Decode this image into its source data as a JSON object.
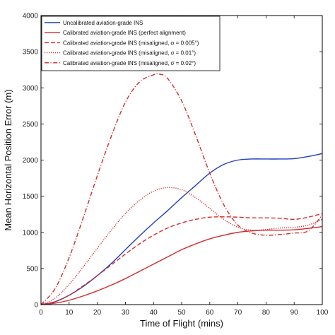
{
  "chart_data": {
    "type": "line",
    "xlabel": "Time of Flight (mins)",
    "ylabel": "Mean Horizontal Position Error (m)",
    "xlim": [
      0,
      100
    ],
    "ylim": [
      0,
      4000
    ],
    "xticks": [
      0,
      10,
      20,
      30,
      40,
      50,
      60,
      70,
      80,
      90,
      100
    ],
    "yticks": [
      0,
      500,
      1000,
      1500,
      2000,
      2500,
      3000,
      3500,
      4000
    ],
    "grid": false,
    "legend_position": "top-left",
    "series": [
      {
        "name": "Uncalibrated aviation-grade INS",
        "color": "#1f3fbf",
        "style": "solid",
        "x": [
          0,
          5,
          10,
          15,
          20,
          25,
          30,
          35,
          40,
          45,
          50,
          55,
          60,
          65,
          70,
          75,
          80,
          85,
          90,
          95,
          100
        ],
        "y": [
          0,
          40,
          130,
          250,
          400,
          570,
          760,
          950,
          1130,
          1300,
          1480,
          1650,
          1820,
          1940,
          2000,
          2015,
          2015,
          2015,
          2020,
          2050,
          2090
        ]
      },
      {
        "name": "Calibrated aviation-grade INS (perfect alignment)",
        "color": "#d42a2a",
        "style": "solid",
        "x": [
          0,
          5,
          10,
          15,
          20,
          25,
          30,
          35,
          40,
          45,
          50,
          55,
          60,
          65,
          70,
          75,
          80,
          85,
          90,
          95,
          100
        ],
        "y": [
          0,
          20,
          60,
          120,
          190,
          270,
          360,
          460,
          560,
          660,
          760,
          840,
          910,
          960,
          1000,
          1020,
          1030,
          1030,
          1035,
          1055,
          1080
        ]
      },
      {
        "name": "Calibrated aviation-grade INS (misaligned, σ = 0.005°)",
        "color": "#d42a2a",
        "style": "dashed",
        "x": [
          0,
          5,
          10,
          15,
          20,
          25,
          30,
          35,
          40,
          45,
          50,
          55,
          60,
          65,
          70,
          75,
          80,
          85,
          90,
          95,
          100
        ],
        "y": [
          0,
          40,
          130,
          260,
          400,
          550,
          700,
          840,
          960,
          1060,
          1130,
          1180,
          1210,
          1215,
          1210,
          1200,
          1200,
          1195,
          1180,
          1210,
          1260
        ]
      },
      {
        "name": "Calibrated aviation-grade INS (misaligned, σ = 0.01°)",
        "color": "#d42a2a",
        "style": "dotted",
        "x": [
          0,
          5,
          10,
          15,
          20,
          25,
          30,
          35,
          40,
          45,
          50,
          55,
          60,
          65,
          70,
          75,
          80,
          85,
          90,
          95,
          100
        ],
        "y": [
          0,
          90,
          280,
          520,
          780,
          1030,
          1260,
          1440,
          1570,
          1620,
          1590,
          1480,
          1330,
          1180,
          1070,
          1030,
          1040,
          1060,
          1070,
          1100,
          1180
        ]
      },
      {
        "name": "Calibrated aviation-grade INS (misaligned, σ = 0.02°)",
        "color": "#d42a2a",
        "style": "dashdot",
        "x": [
          0,
          5,
          10,
          15,
          20,
          25,
          30,
          35,
          40,
          42,
          45,
          50,
          55,
          60,
          65,
          70,
          75,
          80,
          85,
          90,
          95,
          100
        ],
        "y": [
          0,
          220,
          650,
          1200,
          1780,
          2330,
          2800,
          3080,
          3180,
          3190,
          3130,
          2820,
          2340,
          1820,
          1380,
          1100,
          990,
          960,
          970,
          990,
          1020,
          1240
        ]
      }
    ]
  }
}
